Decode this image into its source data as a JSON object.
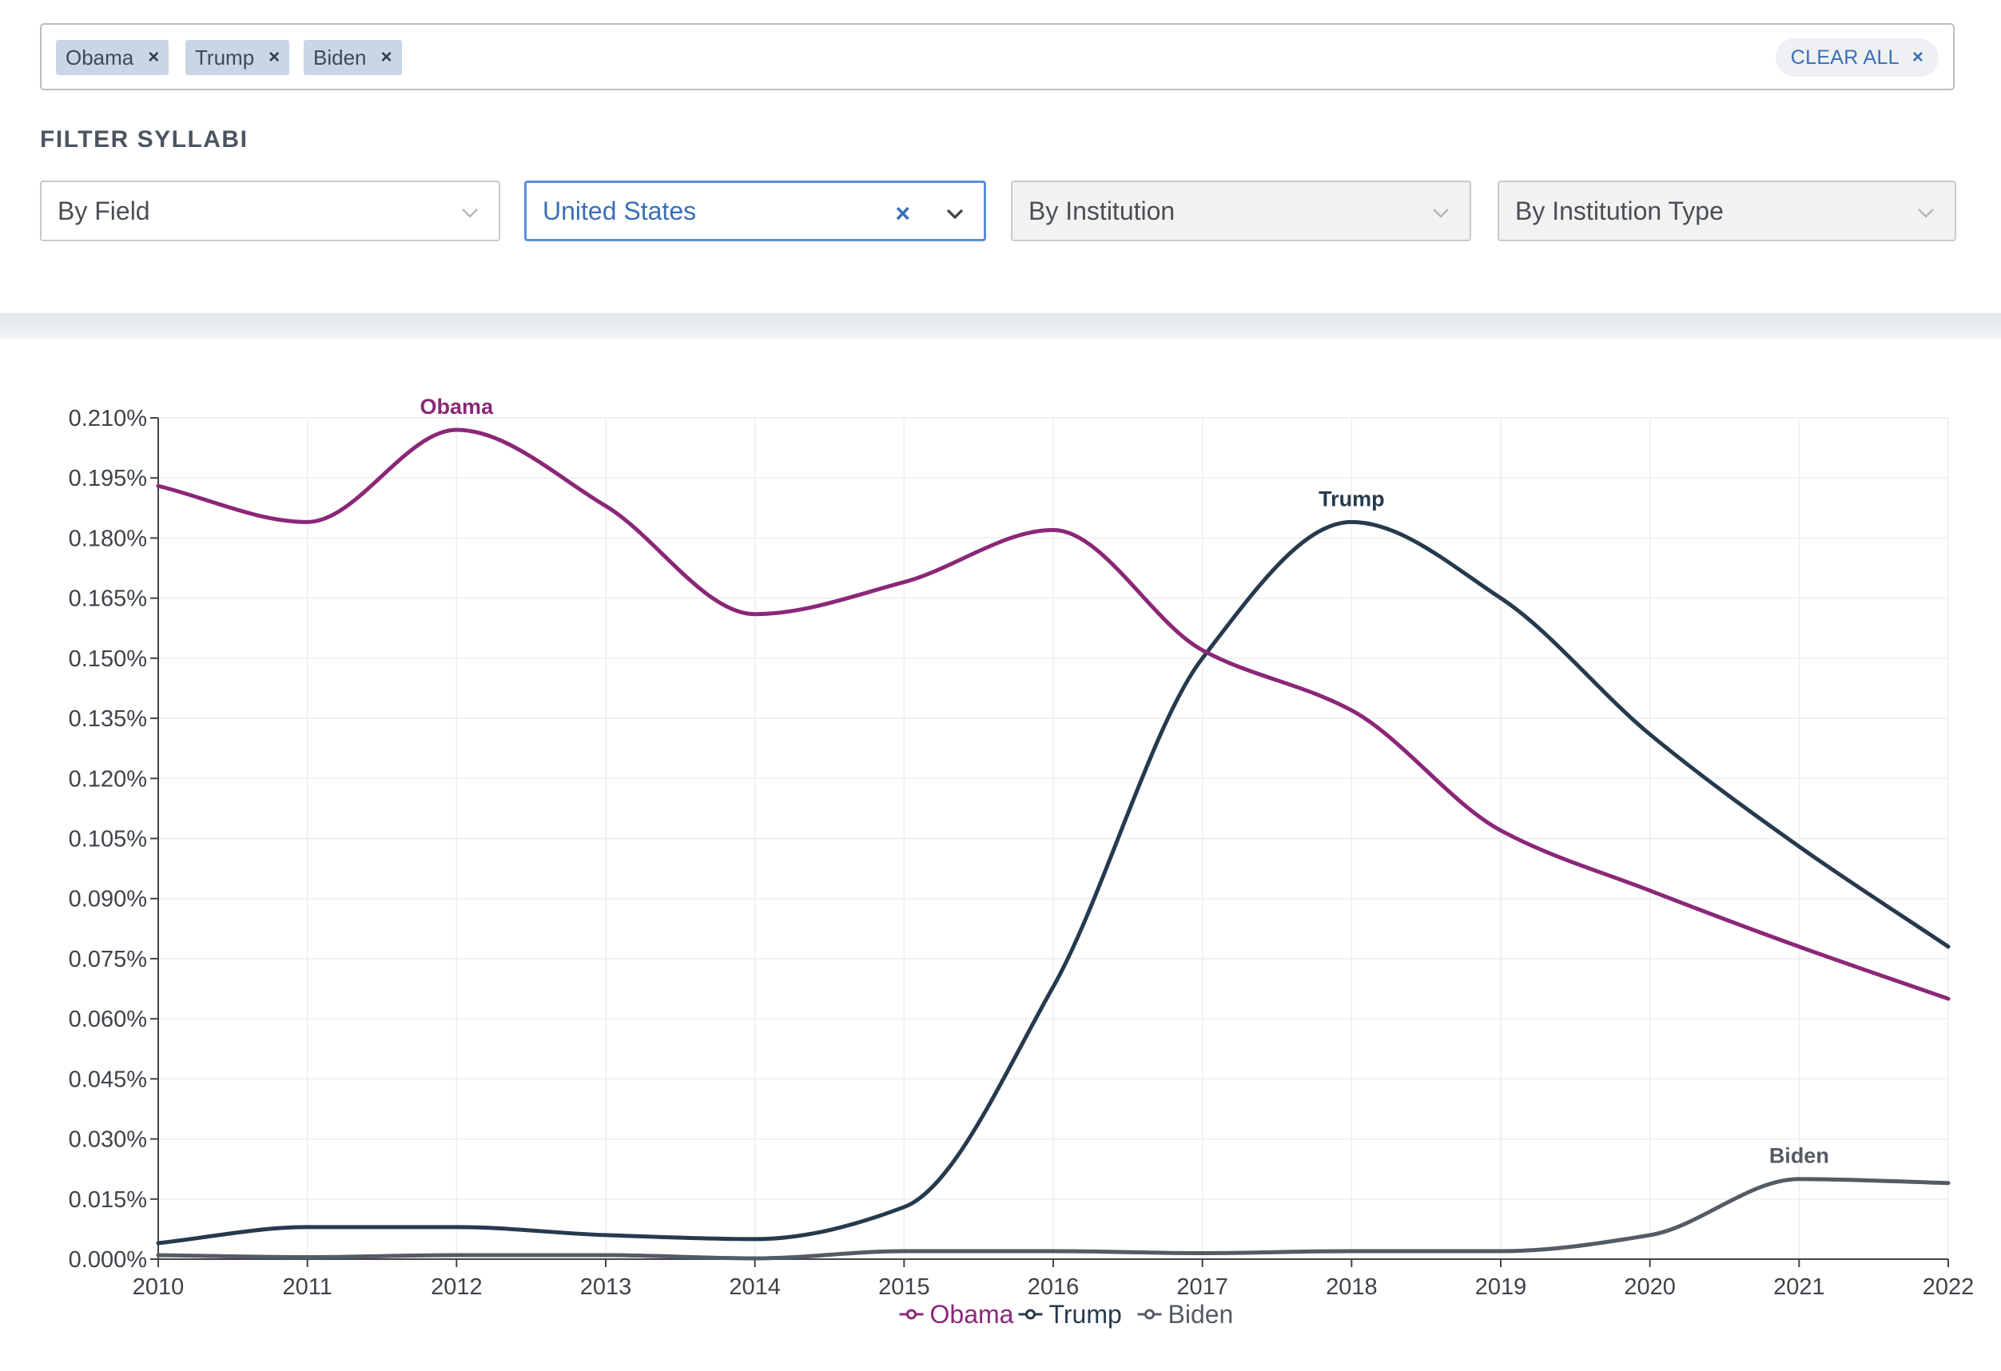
{
  "tags": [
    {
      "label": "Obama",
      "remove": "×"
    },
    {
      "label": "Trump",
      "remove": "×"
    },
    {
      "label": "Biden",
      "remove": "×"
    }
  ],
  "clear_all": {
    "label": "CLEAR ALL",
    "icon": "×"
  },
  "filter_title": "FILTER SYLLABI",
  "filters": [
    {
      "label": "By Field",
      "state": "default"
    },
    {
      "label": "United States",
      "state": "selected"
    },
    {
      "label": "By Institution",
      "state": "disabled"
    },
    {
      "label": "By Institution Type",
      "state": "disabled"
    }
  ],
  "colors": {
    "obama": "#8b2778",
    "trump": "#263a4d",
    "biden": "#555b63",
    "accent": "#3a6fb5",
    "grid": "#eeeeee"
  },
  "chart_data": {
    "type": "line",
    "title": "",
    "xlabel": "",
    "ylabel": "",
    "x": [
      2010,
      2011,
      2012,
      2013,
      2014,
      2015,
      2016,
      2017,
      2018,
      2019,
      2020,
      2021,
      2022
    ],
    "xlim": [
      2010,
      2022
    ],
    "ylim": [
      0,
      0.21
    ],
    "y_ticks": [
      0,
      0.015,
      0.03,
      0.045,
      0.06,
      0.075,
      0.09,
      0.105,
      0.12,
      0.135,
      0.15,
      0.165,
      0.18,
      0.195,
      0.21
    ],
    "y_tick_labels": [
      "0.000%",
      "0.015%",
      "0.030%",
      "0.045%",
      "0.060%",
      "0.075%",
      "0.090%",
      "0.105%",
      "0.120%",
      "0.135%",
      "0.150%",
      "0.165%",
      "0.180%",
      "0.195%",
      "0.210%"
    ],
    "y_unit": "%",
    "grid": true,
    "legend_position": "bottom-center",
    "series": [
      {
        "name": "Obama",
        "key": "obama",
        "values": [
          0.193,
          0.184,
          0.207,
          0.188,
          0.161,
          0.169,
          0.182,
          0.152,
          0.137,
          0.107,
          0.092,
          0.078,
          0.065
        ],
        "peak_label": "Obama",
        "peak_index": 2
      },
      {
        "name": "Trump",
        "key": "trump",
        "values": [
          0.004,
          0.008,
          0.008,
          0.006,
          0.005,
          0.013,
          0.068,
          0.15,
          0.184,
          0.165,
          0.131,
          0.103,
          0.078
        ],
        "peak_label": "Trump",
        "peak_index": 8
      },
      {
        "name": "Biden",
        "key": "biden",
        "values": [
          0.001,
          0.0005,
          0.001,
          0.001,
          0.0002,
          0.002,
          0.002,
          0.0015,
          0.002,
          0.002,
          0.006,
          0.02,
          0.019
        ],
        "peak_label": "Biden",
        "peak_index": 11
      }
    ]
  }
}
